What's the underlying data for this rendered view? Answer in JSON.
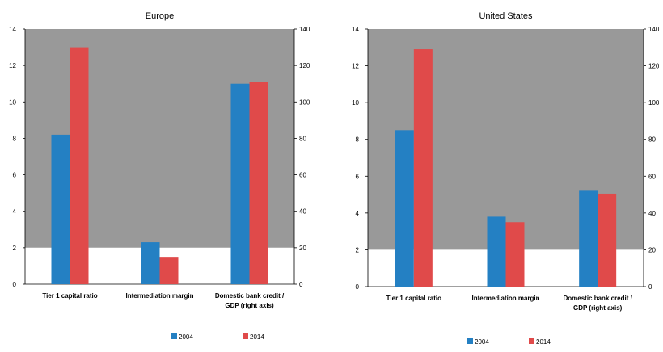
{
  "colors": {
    "series_2004": "#2480c3",
    "series_2014": "#e04a4a",
    "plot_background": "#999999",
    "lower_band": "#ffffff"
  },
  "chart_data": [
    {
      "type": "bar",
      "title": "Europe",
      "categories": [
        "Tier 1 capital ratio",
        "Intermediation margin",
        "Domestic bank credit / GDP (right axis)"
      ],
      "category_lines": [
        [
          "Tier 1 capital ratio"
        ],
        [
          "Intermediation margin"
        ],
        [
          "Domestic bank credit /",
          "GDP (right axis)"
        ]
      ],
      "series": [
        {
          "name": "2004",
          "values": [
            8.2,
            2.3,
            110
          ]
        },
        {
          "name": "2014",
          "values": [
            13.0,
            1.5,
            111
          ]
        }
      ],
      "ylim": [
        0,
        14
      ],
      "yticks": [
        "0",
        "2",
        "4",
        "6",
        "8",
        "10",
        "12",
        "14"
      ],
      "y2lim": [
        0,
        140
      ],
      "y2ticks": [
        "0",
        "20",
        "40",
        "60",
        "80",
        "100",
        "120",
        "140"
      ],
      "right_axis_categories": [
        2
      ],
      "background_band_upper_start": 2,
      "legend": "bottom-center"
    },
    {
      "type": "bar",
      "title": "United States",
      "categories": [
        "Tier 1 capital ratio",
        "Intermediation margin",
        "Domestic bank credit / GDP (right axis)"
      ],
      "category_lines": [
        [
          "Tier 1 capital ratio"
        ],
        [
          "Intermediation margin"
        ],
        [
          "Domestic bank credit /",
          "GDP (right axis)"
        ]
      ],
      "series": [
        {
          "name": "2004",
          "values": [
            8.5,
            3.8,
            52.5
          ]
        },
        {
          "name": "2014",
          "values": [
            12.9,
            3.5,
            50.5
          ]
        }
      ],
      "ylim": [
        0,
        14
      ],
      "yticks": [
        "0",
        "2",
        "4",
        "6",
        "8",
        "10",
        "12",
        "14"
      ],
      "y2lim": [
        0,
        140
      ],
      "y2ticks": [
        "0",
        "20",
        "40",
        "60",
        "80",
        "100",
        "120",
        "140"
      ],
      "right_axis_categories": [
        2
      ],
      "background_band_upper_start": 2,
      "legend": "bottom-center"
    }
  ]
}
